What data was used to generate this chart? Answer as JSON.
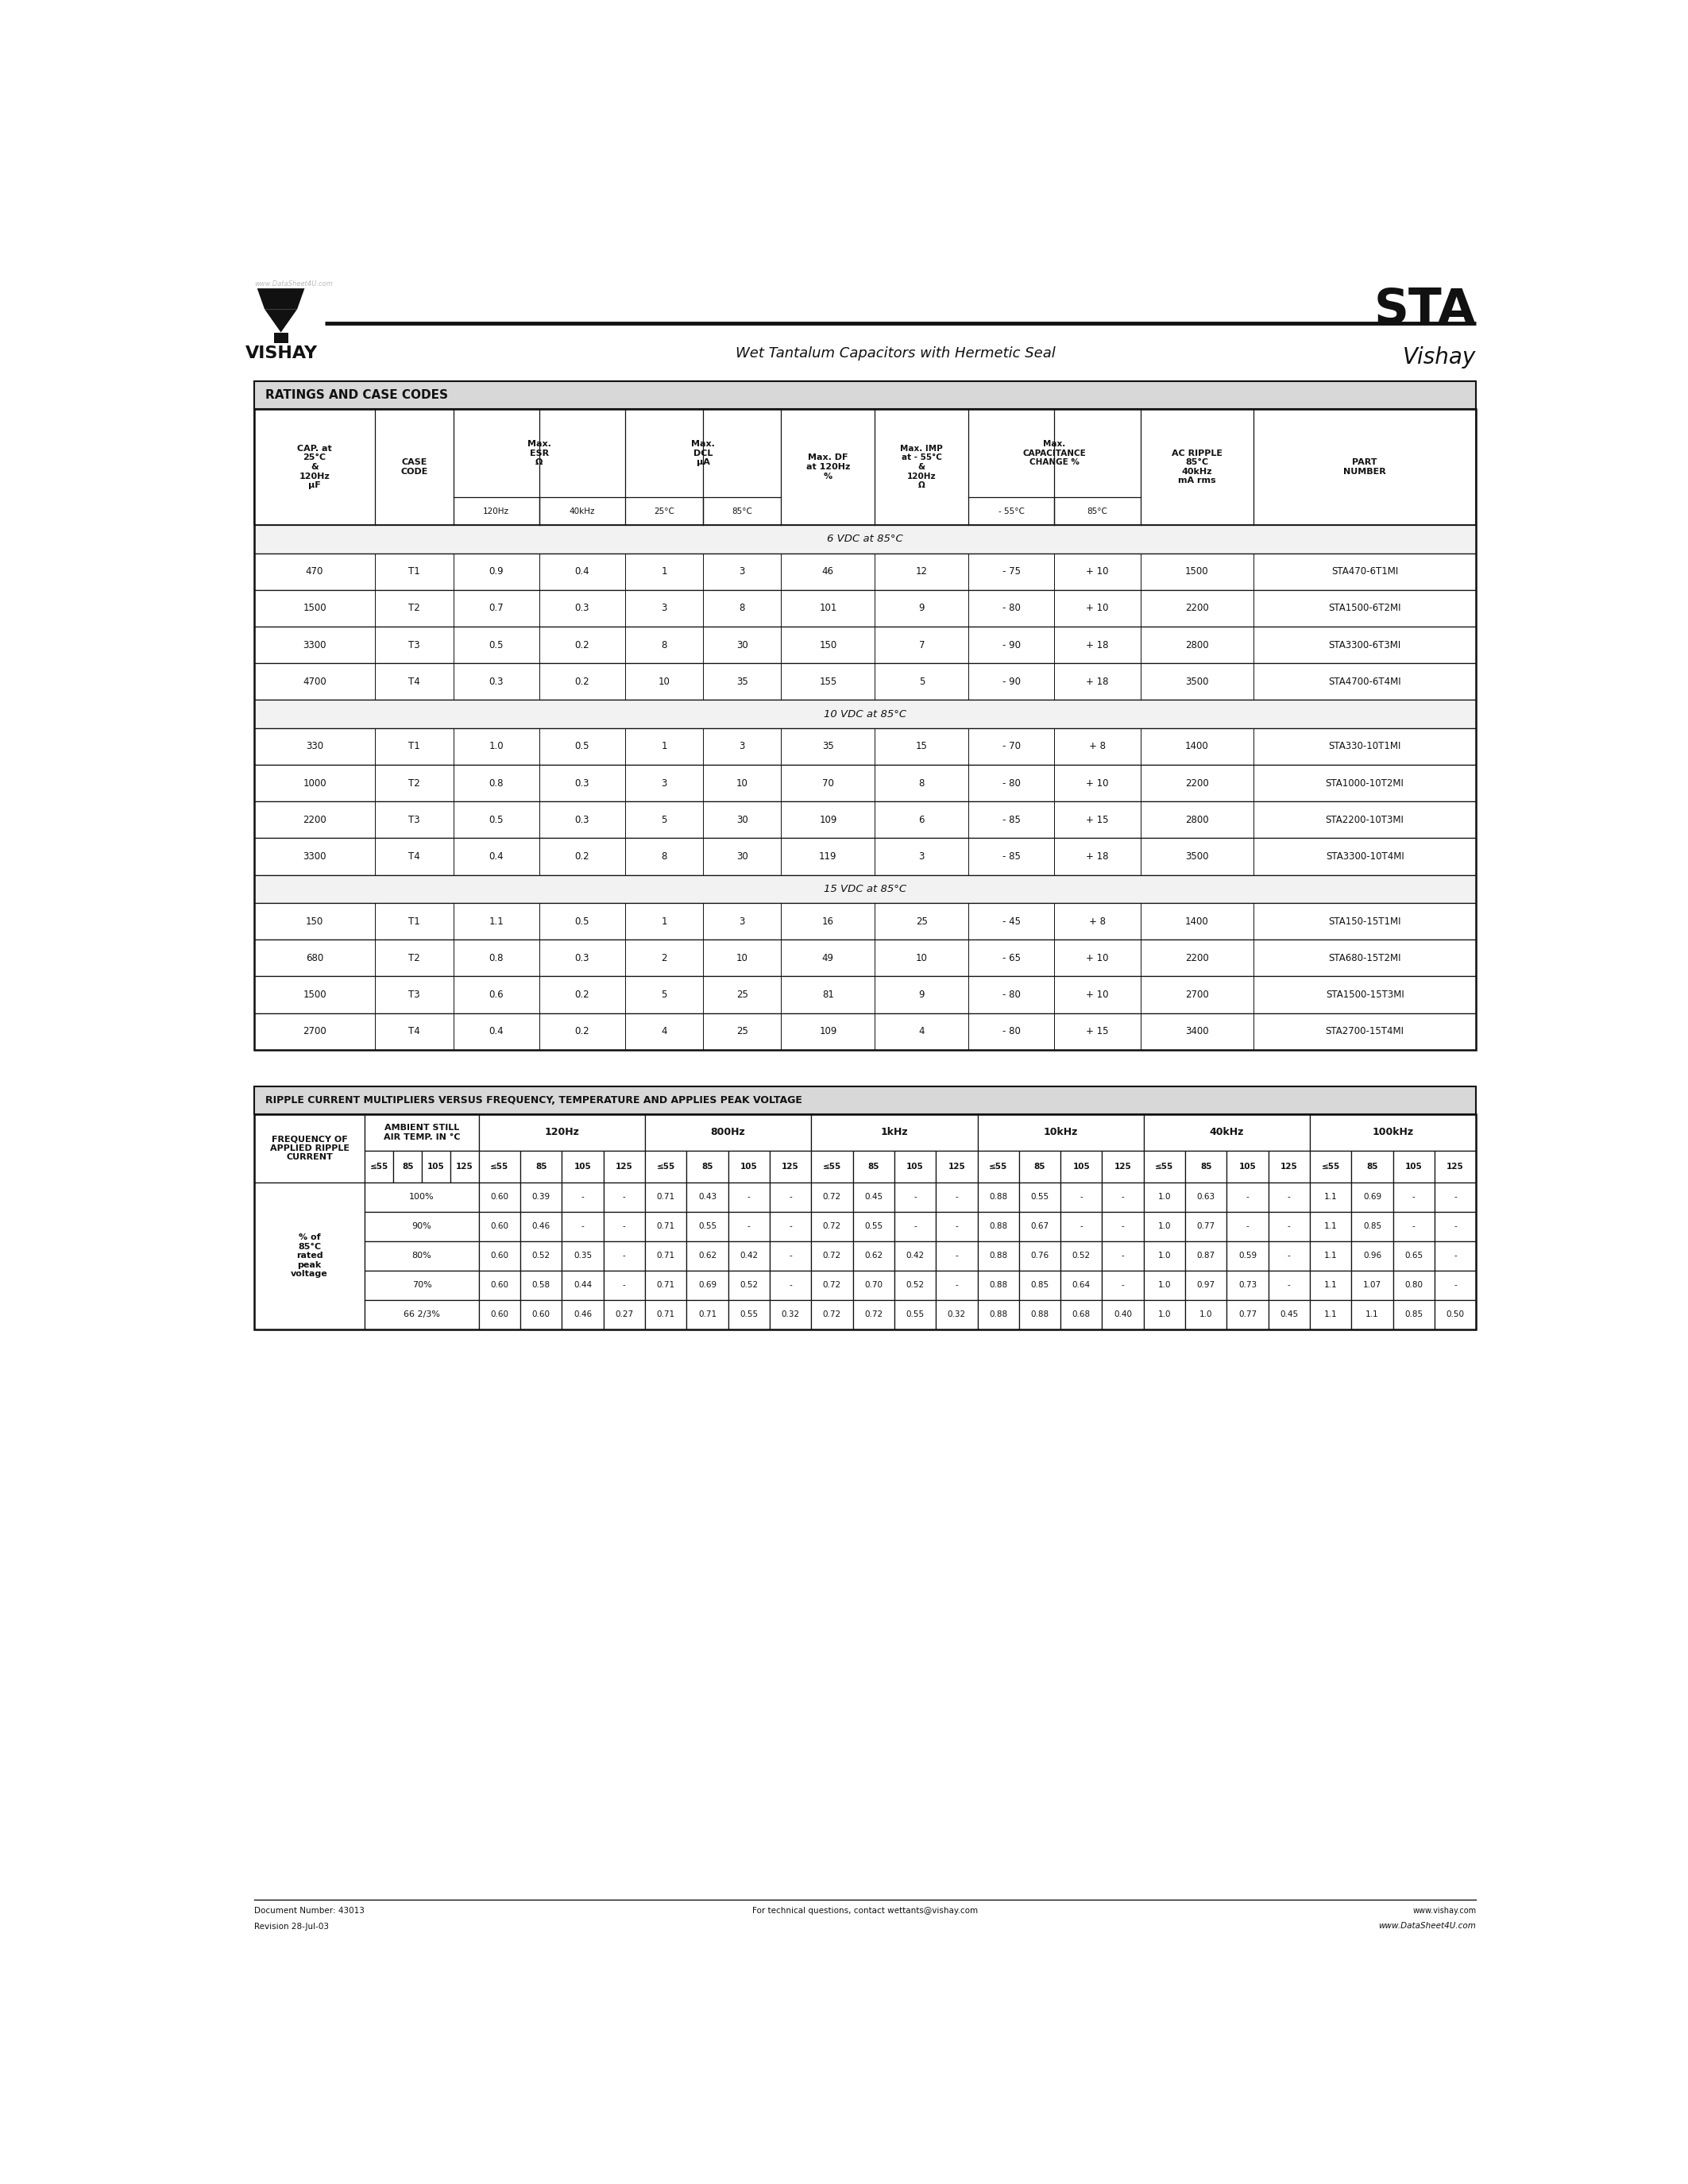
{
  "page_title": "STA",
  "subtitle": "Wet Tantalum Capacitors with Hermetic Seal",
  "brand": "Vishay",
  "watermark": "www.DataSheet4U.com",
  "table1_title": "RATINGS AND CASE CODES",
  "section_6vdc": "6 VDC at 85°C",
  "section_10vdc": "10 VDC at 85°C",
  "section_15vdc": "15 VDC at 85°C",
  "data_6vdc": [
    [
      "470",
      "T1",
      "0.9",
      "0.4",
      "1",
      "3",
      "46",
      "12",
      "- 75",
      "+ 10",
      "1500",
      "STA470-6T1MI"
    ],
    [
      "1500",
      "T2",
      "0.7",
      "0.3",
      "3",
      "8",
      "101",
      "9",
      "- 80",
      "+ 10",
      "2200",
      "STA1500-6T2MI"
    ],
    [
      "3300",
      "T3",
      "0.5",
      "0.2",
      "8",
      "30",
      "150",
      "7",
      "- 90",
      "+ 18",
      "2800",
      "STA3300-6T3MI"
    ],
    [
      "4700",
      "T4",
      "0.3",
      "0.2",
      "10",
      "35",
      "155",
      "5",
      "- 90",
      "+ 18",
      "3500",
      "STA4700-6T4MI"
    ]
  ],
  "data_10vdc": [
    [
      "330",
      "T1",
      "1.0",
      "0.5",
      "1",
      "3",
      "35",
      "15",
      "- 70",
      "+ 8",
      "1400",
      "STA330-10T1MI"
    ],
    [
      "1000",
      "T2",
      "0.8",
      "0.3",
      "3",
      "10",
      "70",
      "8",
      "- 80",
      "+ 10",
      "2200",
      "STA1000-10T2MI"
    ],
    [
      "2200",
      "T3",
      "0.5",
      "0.3",
      "5",
      "30",
      "109",
      "6",
      "- 85",
      "+ 15",
      "2800",
      "STA2200-10T3MI"
    ],
    [
      "3300",
      "T4",
      "0.4",
      "0.2",
      "8",
      "30",
      "119",
      "3",
      "- 85",
      "+ 18",
      "3500",
      "STA3300-10T4MI"
    ]
  ],
  "data_15vdc": [
    [
      "150",
      "T1",
      "1.1",
      "0.5",
      "1",
      "3",
      "16",
      "25",
      "- 45",
      "+ 8",
      "1400",
      "STA150-15T1MI"
    ],
    [
      "680",
      "T2",
      "0.8",
      "0.3",
      "2",
      "10",
      "49",
      "10",
      "- 65",
      "+ 10",
      "2200",
      "STA680-15T2MI"
    ],
    [
      "1500",
      "T3",
      "0.6",
      "0.2",
      "5",
      "25",
      "81",
      "9",
      "- 80",
      "+ 10",
      "2700",
      "STA1500-15T3MI"
    ],
    [
      "2700",
      "T4",
      "0.4",
      "0.2",
      "4",
      "25",
      "109",
      "4",
      "- 80",
      "+ 15",
      "3400",
      "STA2700-15T4MI"
    ]
  ],
  "table2_title": "RIPPLE CURRENT MULTIPLIERS VERSUS FREQUENCY, TEMPERATURE AND APPLIES PEAK VOLTAGE",
  "table2_freq_headers": [
    "120Hz",
    "800Hz",
    "1kHz",
    "10kHz",
    "40kHz",
    "100kHz"
  ],
  "table2_temp_labels": [
    "≤55",
    "85",
    "105",
    "125"
  ],
  "table2_row_labels": [
    "100%",
    "90%",
    "80%",
    "70%",
    "66 2/3%"
  ],
  "table2_pct_label": "% of\n85°C\nrated\npeak\nvoltage",
  "table2_data": [
    [
      "0.60",
      "0.39",
      "-",
      "-",
      "0.71",
      "0.43",
      "-",
      "-",
      "0.72",
      "0.45",
      "-",
      "-",
      "0.88",
      "0.55",
      "-",
      "-",
      "1.0",
      "0.63",
      "-",
      "-",
      "1.1",
      "0.69",
      "-",
      "-"
    ],
    [
      "0.60",
      "0.46",
      "-",
      "-",
      "0.71",
      "0.55",
      "-",
      "-",
      "0.72",
      "0.55",
      "-",
      "-",
      "0.88",
      "0.67",
      "-",
      "-",
      "1.0",
      "0.77",
      "-",
      "-",
      "1.1",
      "0.85",
      "-",
      "-"
    ],
    [
      "0.60",
      "0.52",
      "0.35",
      "-",
      "0.71",
      "0.62",
      "0.42",
      "-",
      "0.72",
      "0.62",
      "0.42",
      "-",
      "0.88",
      "0.76",
      "0.52",
      "-",
      "1.0",
      "0.87",
      "0.59",
      "-",
      "1.1",
      "0.96",
      "0.65",
      "-"
    ],
    [
      "0.60",
      "0.58",
      "0.44",
      "-",
      "0.71",
      "0.69",
      "0.52",
      "-",
      "0.72",
      "0.70",
      "0.52",
      "-",
      "0.88",
      "0.85",
      "0.64",
      "-",
      "1.0",
      "0.97",
      "0.73",
      "-",
      "1.1",
      "1.07",
      "0.80",
      "-"
    ],
    [
      "0.60",
      "0.60",
      "0.46",
      "0.27",
      "0.71",
      "0.71",
      "0.55",
      "0.32",
      "0.72",
      "0.72",
      "0.55",
      "0.32",
      "0.88",
      "0.88",
      "0.68",
      "0.40",
      "1.0",
      "1.0",
      "0.77",
      "0.45",
      "1.1",
      "1.1",
      "0.85",
      "0.50"
    ]
  ],
  "footer_doc": "Document Number: 43013",
  "footer_rev": "Revision 28-Jul-03",
  "footer_contact": "For technical questions, contact ",
  "footer_email": "wettants@vishay.com",
  "footer_web": "www.vishay.com",
  "footer_web2": "www.DataSheet4U.com"
}
